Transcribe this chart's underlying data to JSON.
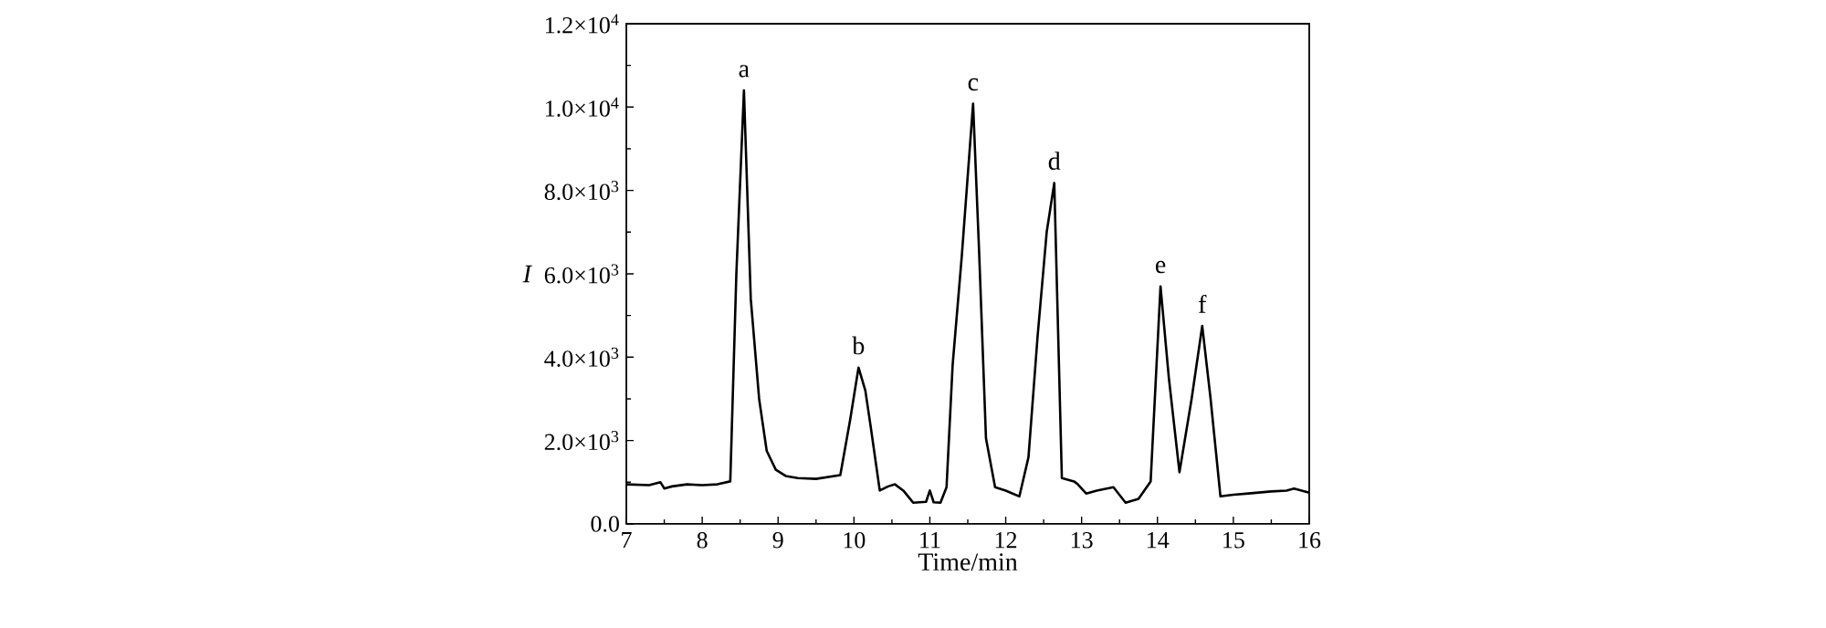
{
  "chart_data": {
    "type": "line",
    "xlabel": "Time/min",
    "ylabel": "I",
    "color": "#000000",
    "x": [
      7.0,
      7.3,
      7.45,
      7.5,
      7.6,
      7.8,
      8.0,
      8.2,
      8.37,
      8.45,
      8.55,
      8.64,
      8.75,
      8.85,
      8.97,
      9.1,
      9.26,
      9.5,
      9.82,
      9.95,
      10.06,
      10.15,
      10.22,
      10.34,
      10.45,
      10.54,
      10.65,
      10.78,
      10.95,
      11.0,
      11.05,
      11.14,
      11.22,
      11.3,
      11.42,
      11.57,
      11.65,
      11.74,
      11.86,
      12.0,
      12.18,
      12.3,
      12.42,
      12.54,
      12.64,
      12.74,
      12.9,
      12.95,
      13.06,
      13.2,
      13.42,
      13.58,
      13.75,
      13.91,
      14.04,
      14.15,
      14.29,
      14.45,
      14.59,
      14.7,
      14.83,
      15.0,
      15.2,
      15.5,
      15.7,
      15.8,
      16.0
    ],
    "values": [
      950,
      930,
      1000,
      850,
      900,
      950,
      930,
      950,
      1020,
      6000,
      10400,
      5400,
      3000,
      1750,
      1300,
      1150,
      1100,
      1080,
      1170,
      2500,
      3750,
      3200,
      2340,
      800,
      900,
      950,
      800,
      510,
      530,
      800,
      520,
      510,
      880,
      3800,
      6400,
      10080,
      6500,
      2050,
      880,
      800,
      660,
      1600,
      4500,
      7000,
      8180,
      1100,
      1020,
      950,
      730,
      800,
      880,
      510,
      600,
      1020,
      5700,
      3500,
      1240,
      3000,
      4750,
      3000,
      660,
      700,
      730,
      780,
      800,
      850,
      750
    ],
    "xlim": [
      7,
      16
    ],
    "xticks": [
      7,
      8,
      9,
      10,
      11,
      12,
      13,
      14,
      15,
      16
    ],
    "ylim": [
      0,
      12000
    ],
    "yticks": [
      {
        "value": 0,
        "label": "0.0"
      },
      {
        "value": 2000,
        "label": "2.0×10$^{3}$"
      },
      {
        "value": 4000,
        "label": "4.0×10$^{3}$"
      },
      {
        "value": 6000,
        "label": "6.0×10$^{3}$"
      },
      {
        "value": 8000,
        "label": "8.0×10$^{3}$"
      },
      {
        "value": 10000,
        "label": "1.0×10$^{4}$"
      },
      {
        "value": 12000,
        "label": "1.2×10$^{4}$"
      }
    ],
    "annotations": [
      {
        "text": "a",
        "x": 8.55,
        "y": 10400
      },
      {
        "text": "b",
        "x": 10.06,
        "y": 3750
      },
      {
        "text": "c",
        "x": 11.57,
        "y": 10080
      },
      {
        "text": "d",
        "x": 12.64,
        "y": 8180
      },
      {
        "text": "e",
        "x": 14.04,
        "y": 5700
      },
      {
        "text": "f",
        "x": 14.59,
        "y": 4750
      }
    ],
    "marker": "none",
    "line_style": "solid"
  }
}
